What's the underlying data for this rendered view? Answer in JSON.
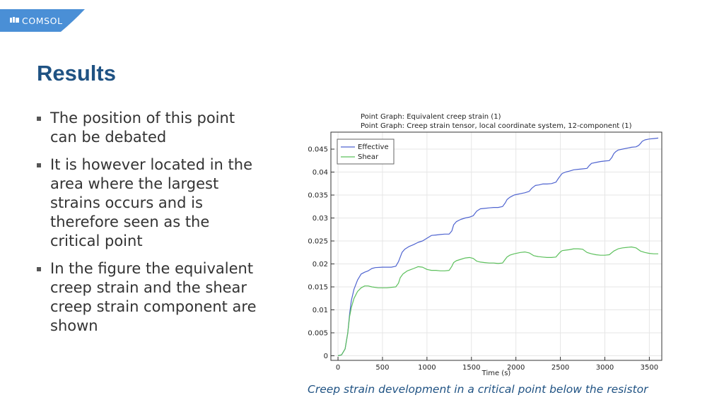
{
  "brand": {
    "logo_text": "COMSOL",
    "logo_color": "#4a8fd6"
  },
  "slide": {
    "title": "Results",
    "bullets": [
      "The position of this point can be debated",
      "It is however located in the area where the largest strains occurs and is therefore seen as the critical point",
      "In the figure the equivalent creep strain and the shear creep strain component are shown"
    ],
    "caption": "Creep strain development in a critical point below the resistor",
    "title_color": "#1f5283"
  },
  "chart_data": {
    "type": "line",
    "title": "Point Graph: Equivalent creep strain (1)",
    "subtitle": "Point Graph: Creep strain tensor, local coordinate system, 12-component (1)",
    "xlabel": "Time (s)",
    "ylabel": "",
    "xlim": [
      -80,
      3640
    ],
    "ylim": [
      -0.001,
      0.0487
    ],
    "x_ticks": [
      "0",
      "500",
      "1000",
      "1500",
      "2000",
      "2500",
      "3000",
      "3500"
    ],
    "x_tick_values": [
      0,
      500,
      1000,
      1500,
      2000,
      2500,
      3000,
      3500
    ],
    "y_ticks": [
      "0",
      "0.005",
      "0.01",
      "0.015",
      "0.02",
      "0.025",
      "0.03",
      "0.035",
      "0.04",
      "0.045"
    ],
    "y_tick_values": [
      0,
      0.005,
      0.01,
      0.015,
      0.02,
      0.025,
      0.03,
      0.035,
      0.04,
      0.045
    ],
    "grid": true,
    "legend_position": "top-left",
    "series": [
      {
        "name": "Effective",
        "color": "#4f64d0",
        "x": [
          0,
          40,
          80,
          110,
          130,
          150,
          180,
          220,
          260,
          300,
          340,
          380,
          420,
          500,
          600,
          650,
          680,
          700,
          720,
          750,
          800,
          850,
          900,
          950,
          1000,
          1050,
          1100,
          1150,
          1200,
          1250,
          1280,
          1300,
          1330,
          1380,
          1430,
          1480,
          1520,
          1560,
          1600,
          1650,
          1700,
          1750,
          1800,
          1850,
          1880,
          1900,
          1930,
          1980,
          2050,
          2100,
          2150,
          2180,
          2200,
          2220,
          2260,
          2300,
          2350,
          2400,
          2450,
          2480,
          2500,
          2520,
          2560,
          2600,
          2650,
          2700,
          2750,
          2800,
          2820,
          2850,
          2900,
          2950,
          3000,
          3050,
          3080,
          3100,
          3120,
          3150,
          3200,
          3250,
          3300,
          3350,
          3380,
          3400,
          3420,
          3450,
          3500,
          3550,
          3600
        ],
        "y": [
          0,
          0.0002,
          0.0015,
          0.005,
          0.009,
          0.012,
          0.0145,
          0.0165,
          0.0178,
          0.0182,
          0.0185,
          0.019,
          0.0192,
          0.0193,
          0.0193,
          0.0195,
          0.0205,
          0.0215,
          0.0225,
          0.0232,
          0.0238,
          0.0242,
          0.0247,
          0.025,
          0.0256,
          0.0262,
          0.0263,
          0.0264,
          0.0265,
          0.0265,
          0.0272,
          0.0285,
          0.0292,
          0.0297,
          0.03,
          0.0302,
          0.0305,
          0.0315,
          0.032,
          0.0321,
          0.0322,
          0.0323,
          0.0323,
          0.0325,
          0.0333,
          0.034,
          0.0345,
          0.035,
          0.0353,
          0.0355,
          0.0358,
          0.0365,
          0.0368,
          0.0371,
          0.0372,
          0.0374,
          0.0374,
          0.0375,
          0.0378,
          0.0387,
          0.0392,
          0.0397,
          0.04,
          0.0402,
          0.0405,
          0.0406,
          0.0407,
          0.0408,
          0.0413,
          0.0419,
          0.0421,
          0.0423,
          0.0424,
          0.0425,
          0.0432,
          0.044,
          0.0444,
          0.0448,
          0.045,
          0.0452,
          0.0454,
          0.0455,
          0.0458,
          0.0462,
          0.0467,
          0.047,
          0.0472,
          0.0473,
          0.0474
        ]
      },
      {
        "name": "Shear",
        "color": "#5cc05c",
        "x": [
          0,
          40,
          80,
          110,
          130,
          150,
          180,
          220,
          260,
          300,
          340,
          380,
          450,
          550,
          650,
          680,
          700,
          730,
          780,
          850,
          900,
          950,
          1000,
          1050,
          1100,
          1150,
          1200,
          1250,
          1280,
          1300,
          1330,
          1380,
          1430,
          1480,
          1520,
          1560,
          1600,
          1650,
          1700,
          1750,
          1800,
          1850,
          1880,
          1900,
          1930,
          1980,
          2050,
          2100,
          2150,
          2200,
          2250,
          2300,
          2350,
          2400,
          2450,
          2480,
          2500,
          2520,
          2560,
          2600,
          2650,
          2700,
          2750,
          2800,
          2850,
          2900,
          2950,
          3000,
          3050,
          3100,
          3150,
          3200,
          3250,
          3300,
          3350,
          3400,
          3450,
          3500,
          3550,
          3600
        ],
        "y": [
          0,
          0.0002,
          0.0015,
          0.005,
          0.0085,
          0.0105,
          0.0125,
          0.014,
          0.0148,
          0.0152,
          0.0152,
          0.015,
          0.0148,
          0.0148,
          0.015,
          0.0158,
          0.017,
          0.0178,
          0.0185,
          0.019,
          0.0194,
          0.0193,
          0.0188,
          0.0186,
          0.0186,
          0.0185,
          0.0185,
          0.0186,
          0.0195,
          0.0203,
          0.0207,
          0.021,
          0.0213,
          0.0214,
          0.0212,
          0.0206,
          0.0204,
          0.0203,
          0.0202,
          0.0202,
          0.0201,
          0.0202,
          0.021,
          0.0215,
          0.0219,
          0.0222,
          0.0225,
          0.0226,
          0.0224,
          0.0218,
          0.0216,
          0.0215,
          0.0214,
          0.0214,
          0.0215,
          0.0222,
          0.0226,
          0.0229,
          0.023,
          0.0231,
          0.0233,
          0.0233,
          0.0232,
          0.0225,
          0.0222,
          0.022,
          0.0219,
          0.0219,
          0.022,
          0.0228,
          0.0233,
          0.0235,
          0.0236,
          0.0237,
          0.0235,
          0.0228,
          0.0225,
          0.0223,
          0.0222,
          0.0222
        ]
      }
    ]
  }
}
